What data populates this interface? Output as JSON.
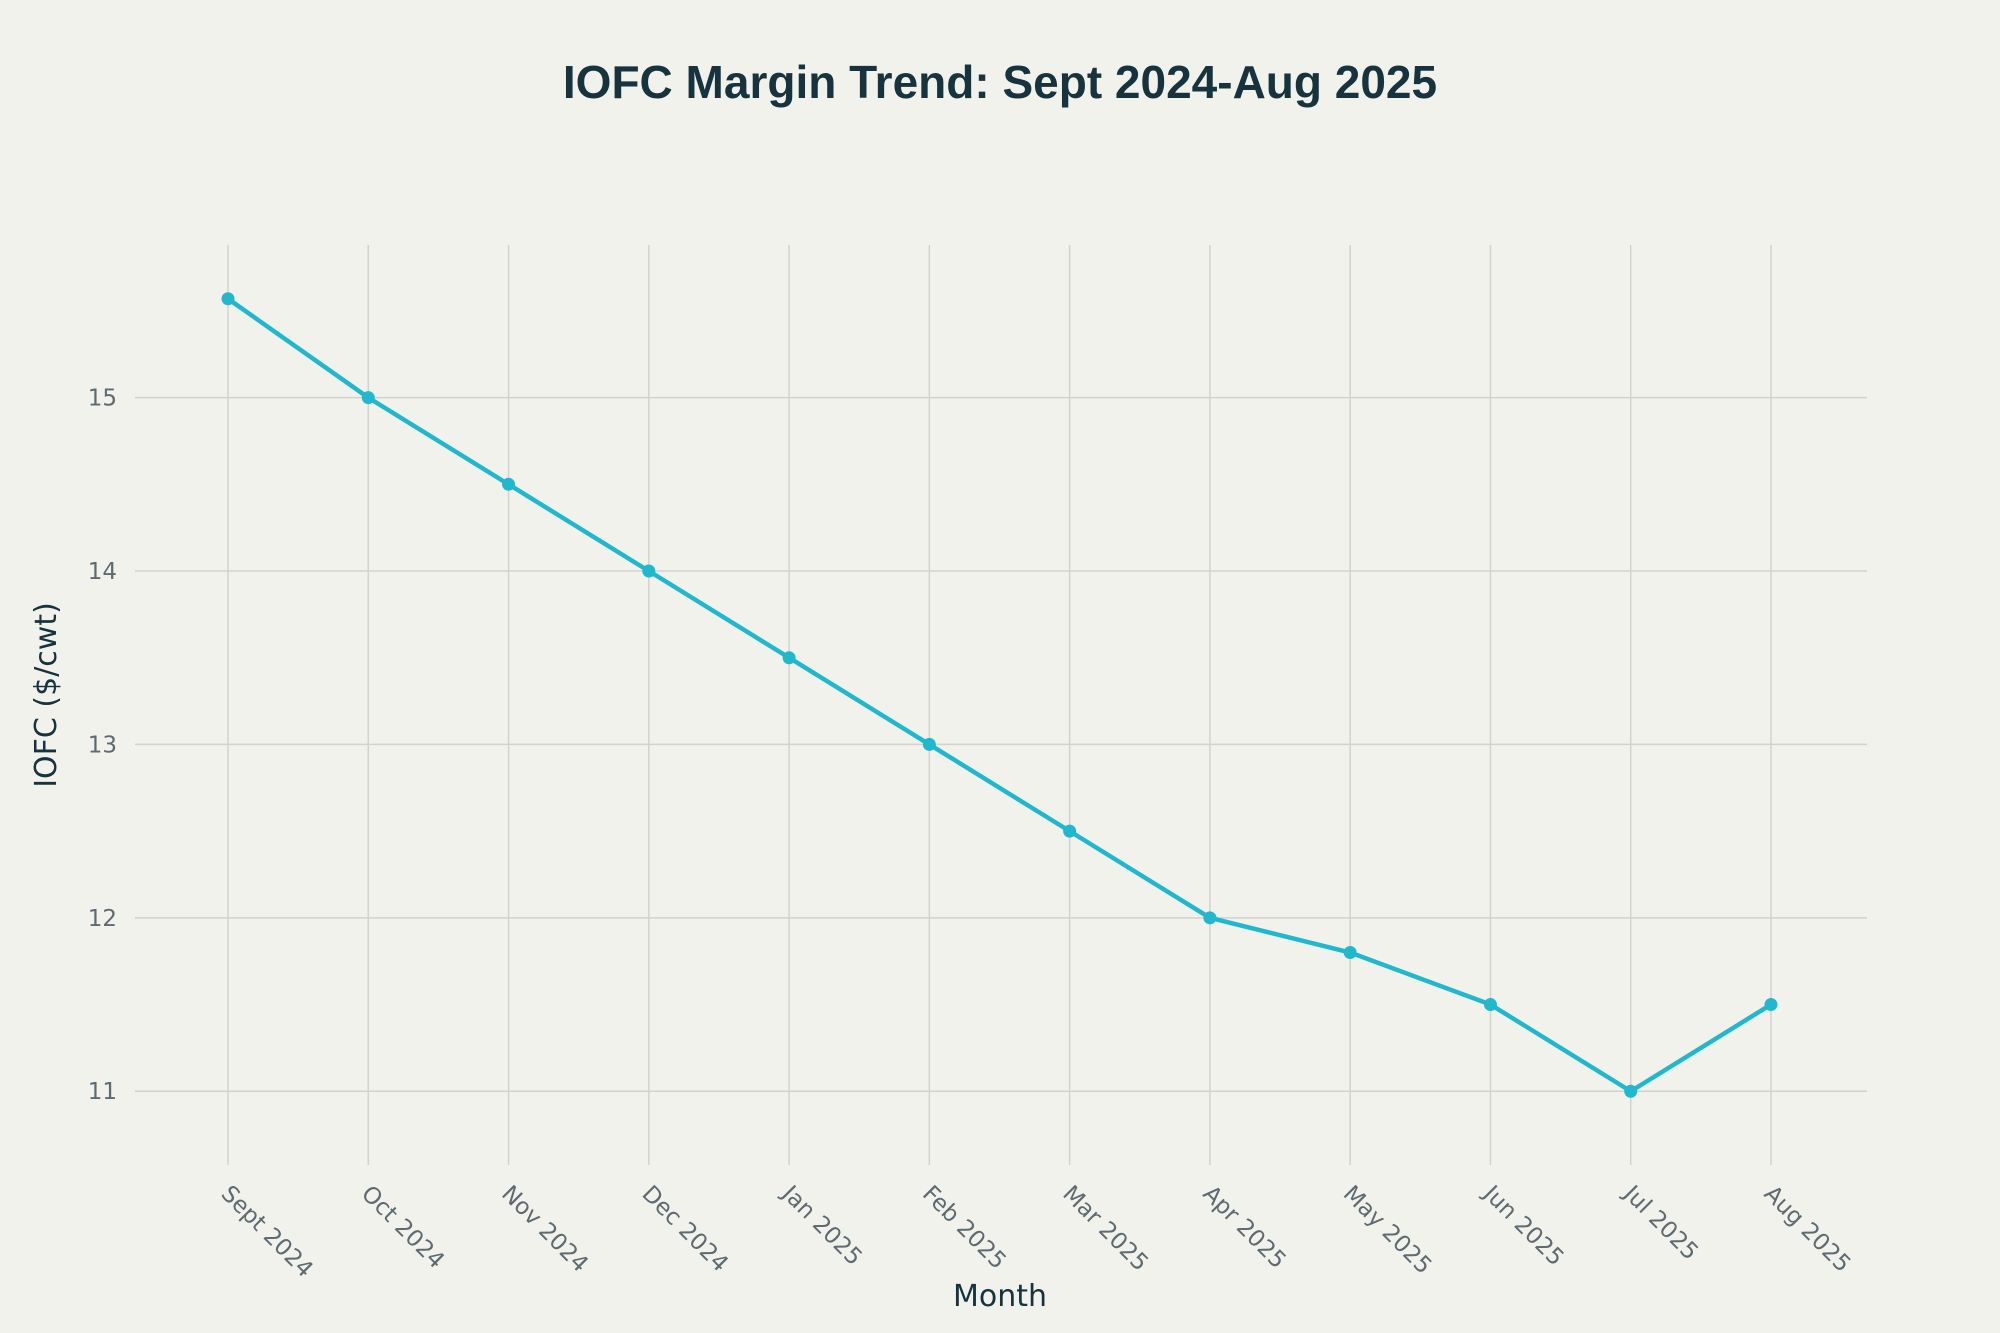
{
  "chart_data": {
    "type": "line",
    "title": "IOFC Margin Trend: Sept 2024-Aug 2025",
    "xlabel": "Month",
    "ylabel": "IOFC ($/cwt)",
    "categories": [
      "Sept 2024",
      "Oct 2024",
      "Nov 2024",
      "Dec 2024",
      "Jan 2025",
      "Feb 2025",
      "Mar 2025",
      "Apr 2025",
      "May 2025",
      "Jun 2025",
      "Jul 2025",
      "Aug 2025"
    ],
    "series": [
      {
        "name": "IOFC",
        "color": "#21b8cd",
        "values": [
          15.57,
          15,
          14.5,
          14,
          13.5,
          13,
          12.5,
          12,
          11.8,
          11.5,
          11,
          11.5
        ]
      }
    ],
    "ylim": [
      10.69,
      15.88
    ],
    "yticks": [
      11,
      12,
      13,
      14,
      15
    ],
    "grid": true,
    "legend": "none"
  }
}
